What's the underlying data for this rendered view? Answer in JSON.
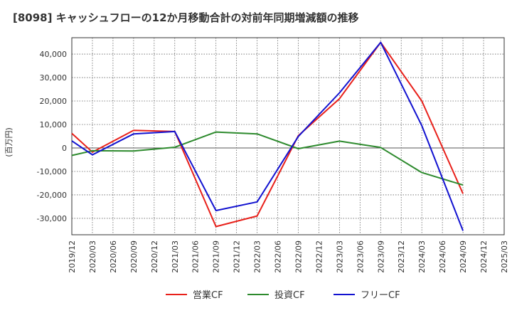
{
  "chart_data": {
    "type": "line",
    "title": "[8098]  キャッシュフローの12か月移動合計の対前年同期増減額の推移",
    "ylabel": "(百万円)",
    "xlabel": "",
    "x": [
      "2019/12",
      "2020/03",
      "2020/06",
      "2020/09",
      "2020/12",
      "2021/03",
      "2021/06",
      "2021/09",
      "2021/12",
      "2022/03",
      "2022/06",
      "2022/09",
      "2022/12",
      "2023/03",
      "2023/06",
      "2023/09",
      "2023/12",
      "2024/03",
      "2024/06",
      "2024/09",
      "2024/12",
      "2025/03"
    ],
    "ylim": [
      -37000,
      47000
    ],
    "yticks": [
      -30000,
      -20000,
      -10000,
      0,
      10000,
      20000,
      30000,
      40000
    ],
    "ytick_labels": [
      "-30,000",
      "-20,000",
      "-10,000",
      "0",
      "10,000",
      "20,000",
      "30,000",
      "40,000"
    ],
    "grid": true,
    "legend_position": "bottom",
    "series": [
      {
        "name": "営業CF",
        "color": "#e8201a",
        "values": [
          6200,
          -1800,
          null,
          7500,
          null,
          7000,
          null,
          -33500,
          null,
          -29000,
          null,
          5200,
          null,
          21000,
          null,
          45000,
          null,
          20000,
          null,
          -19500,
          null,
          null
        ]
      },
      {
        "name": "投資CF",
        "color": "#2d8a2d",
        "values": [
          -3200,
          -1200,
          null,
          -1300,
          null,
          300,
          null,
          6800,
          null,
          6000,
          null,
          -300,
          null,
          2900,
          null,
          200,
          null,
          -10500,
          null,
          -15800,
          null,
          null
        ]
      },
      {
        "name": "フリーCF",
        "color": "#1212d0",
        "values": [
          3000,
          -2900,
          null,
          6000,
          null,
          7000,
          null,
          -26700,
          null,
          -23000,
          null,
          4900,
          null,
          23500,
          null,
          45000,
          null,
          9500,
          null,
          -35300,
          null,
          null
        ]
      }
    ]
  }
}
